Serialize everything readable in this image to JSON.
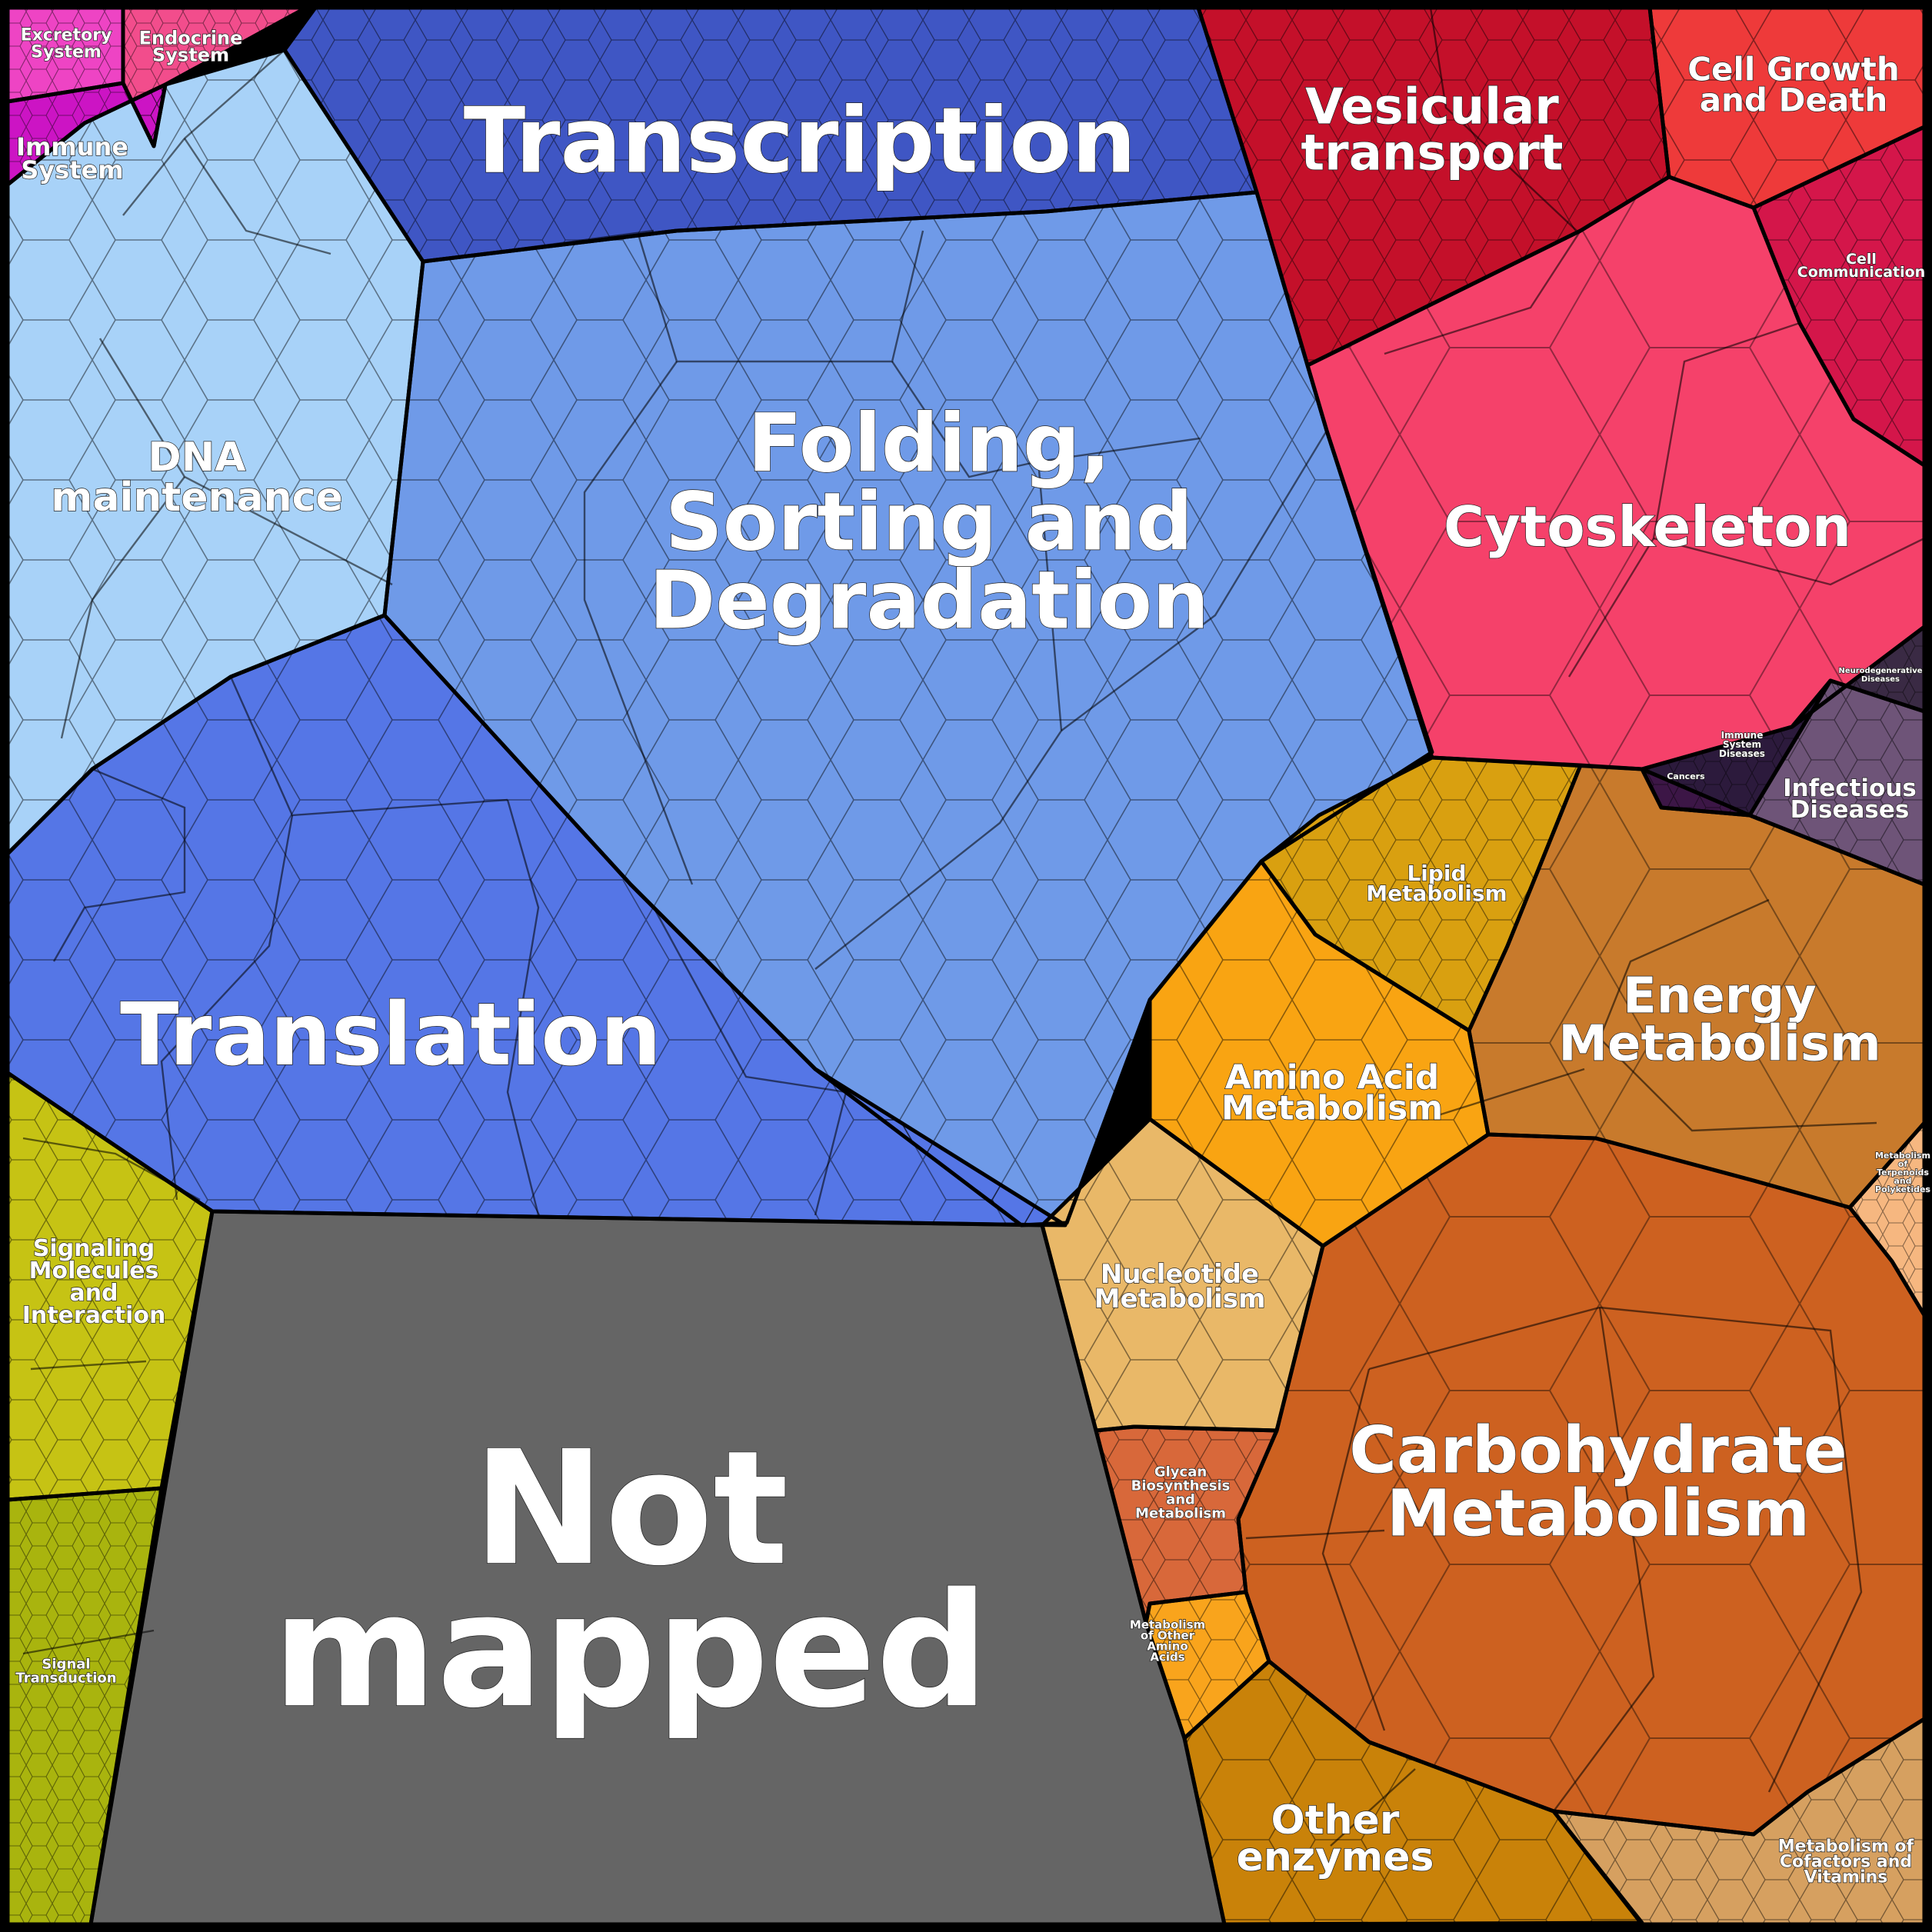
{
  "regions": {
    "transcription": {
      "label": [
        "Transcription"
      ],
      "color": "#3f56c4"
    },
    "folding": {
      "label": [
        "Folding,",
        "Sorting and",
        "Degradation"
      ],
      "color": "#6f9ae8"
    },
    "translation": {
      "label": [
        "Translation"
      ],
      "color": "#5576e6"
    },
    "dna": {
      "label": [
        "DNA",
        "maintenance"
      ],
      "color": "#a8d2f8"
    },
    "vesicular": {
      "label": [
        "Vesicular",
        "transport"
      ],
      "color": "#c4102a"
    },
    "cellgrowth": {
      "label": [
        "Cell Growth",
        "and Death"
      ],
      "color": "#ee3a3a"
    },
    "cellcomm": {
      "label": [
        "Cell",
        "Communication"
      ],
      "color": "#d4164a"
    },
    "cytoskeleton": {
      "label": [
        "Cytoskeleton"
      ],
      "color": "#f5416a"
    },
    "neurodegen": {
      "label": [
        "Neurodegenerative",
        "Diseases"
      ],
      "color": "#3a2a44"
    },
    "immunedis": {
      "label": [
        "Immune",
        "System",
        "Diseases"
      ],
      "color": "#2c1a3c"
    },
    "cancers": {
      "label": [
        "Cancers"
      ],
      "color": "#3c1646"
    },
    "infectious": {
      "label": [
        "Infectious",
        "Diseases"
      ],
      "color": "#6e5478"
    },
    "lipid": {
      "label": [
        "Lipid",
        "Metabolism"
      ],
      "color": "#d9a010"
    },
    "energy": {
      "label": [
        "Energy",
        "Metabolism"
      ],
      "color": "#c87a2c"
    },
    "aminoacid": {
      "label": [
        "Amino Acid",
        "Metabolism"
      ],
      "color": "#f9a412"
    },
    "terpenoids": {
      "label": [
        "Metabolism",
        "of",
        "Terpenoids",
        "and",
        "Polyketides"
      ],
      "color": "#f6b780"
    },
    "nucleotide": {
      "label": [
        "Nucleotide",
        "Metabolism"
      ],
      "color": "#e9b868"
    },
    "carbohydrate": {
      "label": [
        "Carbohydrate",
        "Metabolism"
      ],
      "color": "#cd6120"
    },
    "glycan": {
      "label": [
        "Glycan",
        "Biosynthesis",
        "and",
        "Metabolism"
      ],
      "color": "#d8683a"
    },
    "otheraa": {
      "label": [
        "Metabolism",
        "of Other",
        "Amino",
        "Acids"
      ],
      "color": "#f9a41c"
    },
    "otherenz": {
      "label": [
        "Other",
        "enzymes"
      ],
      "color": "#c98209"
    },
    "cofactors": {
      "label": [
        "Metabolism of",
        "Cofactors and",
        "Vitamins"
      ],
      "color": "#d6a060"
    },
    "notmapped": {
      "label": [
        "Not",
        "mapped"
      ],
      "color": "#656565"
    },
    "signalmol": {
      "label": [
        "Signaling",
        "Molecules",
        "and",
        "Interaction"
      ],
      "color": "#c6c314"
    },
    "signaltrans": {
      "label": [
        "Signal",
        "Transduction"
      ],
      "color": "#a9b40e"
    },
    "excretory": {
      "label": [
        "Excretory",
        "System"
      ],
      "color": "#ee44c4"
    },
    "endocrine": {
      "label": [
        "Endocrine",
        "System"
      ],
      "color": "#f24d8c"
    },
    "immune": {
      "label": [
        "Immune",
        "System"
      ],
      "color": "#cc14c4"
    }
  }
}
